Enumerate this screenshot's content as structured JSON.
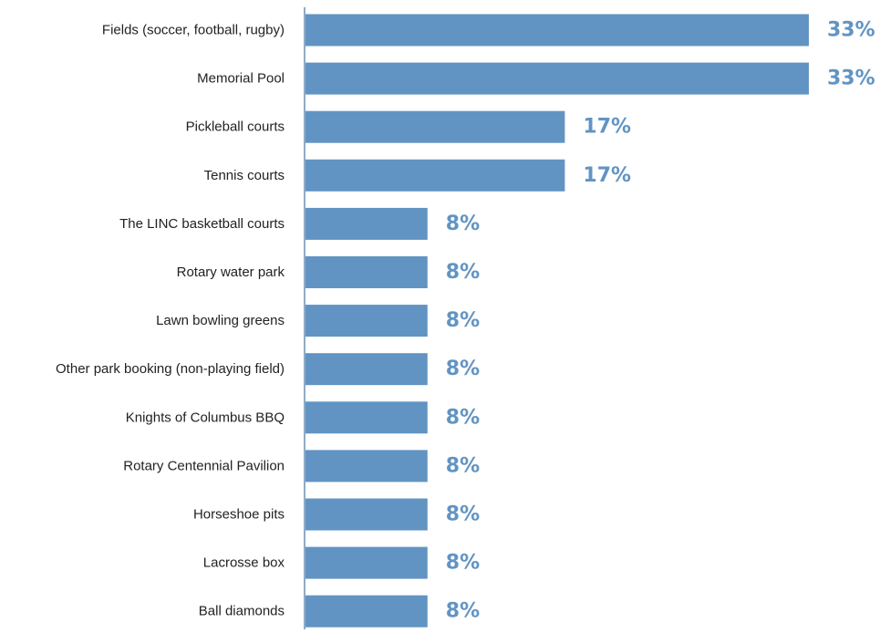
{
  "chart_data": {
    "type": "bar",
    "orientation": "horizontal",
    "categories": [
      "Fields (soccer, football, rugby)",
      "Memorial Pool",
      "Pickleball courts",
      "Tennis courts",
      "The LINC basketball courts",
      "Rotary water park",
      "Lawn bowling greens",
      "Other park booking (non-playing field)",
      "Knights of Columbus BBQ",
      "Rotary Centennial Pavilion",
      "Horseshoe pits",
      "Lacrosse box",
      "Ball diamonds"
    ],
    "values": [
      33,
      33,
      17,
      17,
      8,
      8,
      8,
      8,
      8,
      8,
      8,
      8,
      8
    ],
    "value_labels": [
      "33%",
      "33%",
      "17%",
      "17%",
      "8%",
      "8%",
      "8%",
      "8%",
      "8%",
      "8%",
      "8%",
      "8%",
      "8%"
    ],
    "title": "",
    "xlabel": "",
    "ylabel": "",
    "xlim": [
      0,
      33
    ],
    "grid": false,
    "legend": "none",
    "colors": {
      "bar": "#6194c3",
      "value_label": "#6194c3",
      "axis": "#6b8fb3",
      "text": "#222222"
    }
  }
}
